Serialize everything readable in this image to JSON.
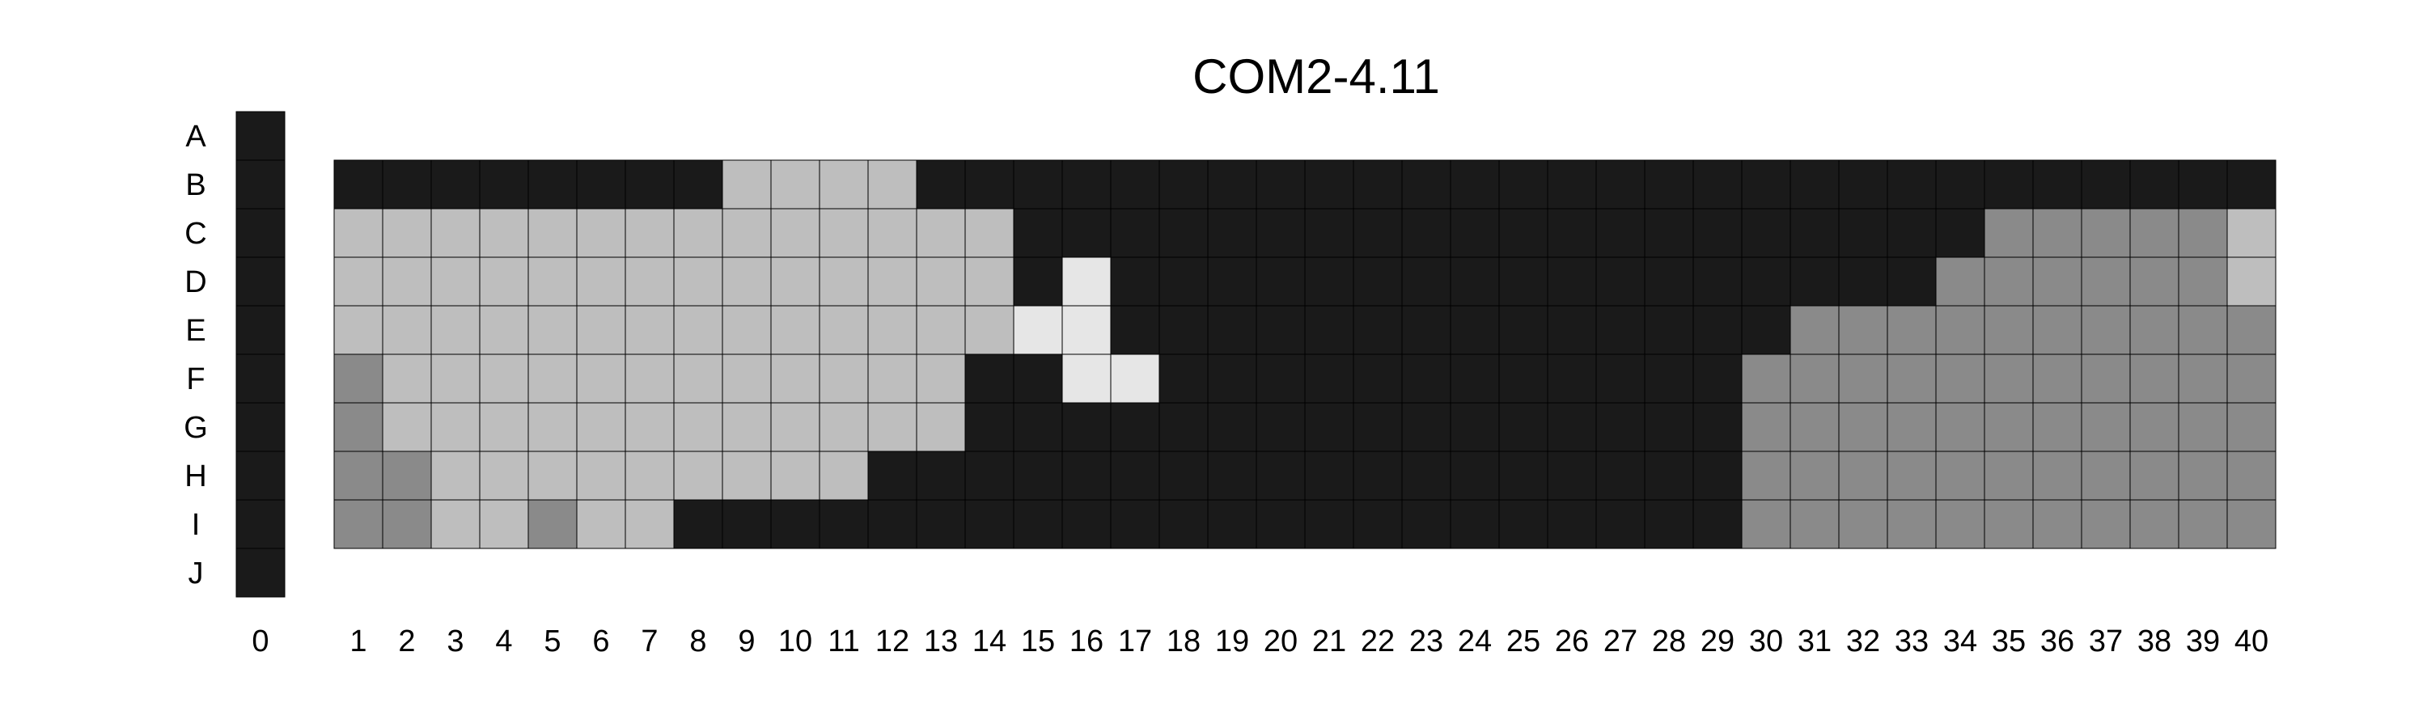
{
  "chart_data": {
    "type": "heatmap",
    "title": "COM2-4.11",
    "xlabel": "",
    "ylabel": "",
    "rows": [
      "A",
      "B",
      "C",
      "D",
      "E",
      "F",
      "G",
      "H",
      "I",
      "J"
    ],
    "control_column": {
      "label": "0",
      "rows": [
        "A",
        "B",
        "C",
        "D",
        "E",
        "F",
        "G",
        "H",
        "I",
        "J"
      ],
      "level": 0
    },
    "columns": [
      "1",
      "2",
      "3",
      "4",
      "5",
      "6",
      "7",
      "8",
      "9",
      "10",
      "11",
      "12",
      "13",
      "14",
      "15",
      "16",
      "17",
      "18",
      "19",
      "20",
      "21",
      "22",
      "23",
      "24",
      "25",
      "26",
      "27",
      "28",
      "29",
      "30",
      "31",
      "32",
      "33",
      "34",
      "35",
      "36",
      "37",
      "38",
      "39",
      "40"
    ],
    "grid_rows": [
      "B",
      "C",
      "D",
      "E",
      "F",
      "G",
      "H",
      "I"
    ],
    "levels": {
      "0": "#1a1a1a",
      "1": "#8a8a8a",
      "2": "#bebebe",
      "3": "#e6e6e6"
    },
    "grid": [
      [
        0,
        0,
        0,
        0,
        0,
        0,
        0,
        0,
        2,
        2,
        2,
        2,
        0,
        0,
        0,
        0,
        0,
        0,
        0,
        0,
        0,
        0,
        0,
        0,
        0,
        0,
        0,
        0,
        0,
        0,
        0,
        0,
        0,
        0,
        0,
        0,
        0,
        0,
        0,
        0
      ],
      [
        2,
        2,
        2,
        2,
        2,
        2,
        2,
        2,
        2,
        2,
        2,
        2,
        2,
        2,
        0,
        0,
        0,
        0,
        0,
        0,
        0,
        0,
        0,
        0,
        0,
        0,
        0,
        0,
        0,
        0,
        0,
        0,
        0,
        0,
        1,
        1,
        1,
        1,
        1,
        2
      ],
      [
        2,
        2,
        2,
        2,
        2,
        2,
        2,
        2,
        2,
        2,
        2,
        2,
        2,
        2,
        0,
        3,
        0,
        0,
        0,
        0,
        0,
        0,
        0,
        0,
        0,
        0,
        0,
        0,
        0,
        0,
        0,
        0,
        0,
        1,
        1,
        1,
        1,
        1,
        1,
        2
      ],
      [
        2,
        2,
        2,
        2,
        2,
        2,
        2,
        2,
        2,
        2,
        2,
        2,
        2,
        2,
        3,
        3,
        0,
        0,
        0,
        0,
        0,
        0,
        0,
        0,
        0,
        0,
        0,
        0,
        0,
        0,
        1,
        1,
        1,
        1,
        1,
        1,
        1,
        1,
        1,
        1
      ],
      [
        1,
        2,
        2,
        2,
        2,
        2,
        2,
        2,
        2,
        2,
        2,
        2,
        2,
        0,
        0,
        3,
        3,
        0,
        0,
        0,
        0,
        0,
        0,
        0,
        0,
        0,
        0,
        0,
        0,
        1,
        1,
        1,
        1,
        1,
        1,
        1,
        1,
        1,
        1,
        1
      ],
      [
        1,
        2,
        2,
        2,
        2,
        2,
        2,
        2,
        2,
        2,
        2,
        2,
        2,
        0,
        0,
        0,
        0,
        0,
        0,
        0,
        0,
        0,
        0,
        0,
        0,
        0,
        0,
        0,
        0,
        1,
        1,
        1,
        1,
        1,
        1,
        1,
        1,
        1,
        1,
        1
      ],
      [
        1,
        1,
        2,
        2,
        2,
        2,
        2,
        2,
        2,
        2,
        2,
        0,
        0,
        0,
        0,
        0,
        0,
        0,
        0,
        0,
        0,
        0,
        0,
        0,
        0,
        0,
        0,
        0,
        0,
        1,
        1,
        1,
        1,
        1,
        1,
        1,
        1,
        1,
        1,
        1
      ],
      [
        1,
        1,
        2,
        2,
        1,
        2,
        2,
        0,
        0,
        0,
        0,
        0,
        0,
        0,
        0,
        0,
        0,
        0,
        0,
        0,
        0,
        0,
        0,
        0,
        0,
        0,
        0,
        0,
        0,
        1,
        1,
        1,
        1,
        1,
        1,
        1,
        1,
        1,
        1,
        1
      ]
    ]
  }
}
